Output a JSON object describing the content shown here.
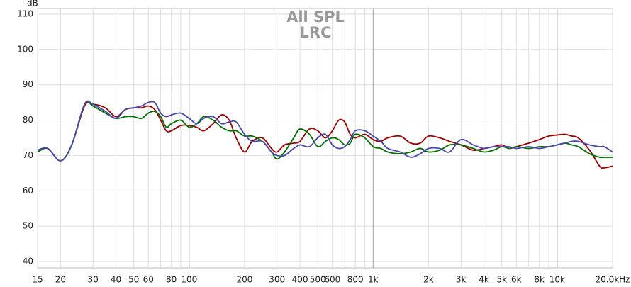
{
  "chart_data": {
    "type": "line",
    "title": "All SPL",
    "subtitle": "LRC",
    "y_label": "dB",
    "x_scale": "log",
    "grid": true,
    "x": [
      15,
      17,
      20,
      23,
      27,
      30,
      35,
      40,
      45,
      50,
      55,
      60,
      65,
      70,
      75,
      80,
      90,
      100,
      110,
      120,
      135,
      150,
      165,
      180,
      200,
      220,
      250,
      280,
      300,
      330,
      370,
      400,
      450,
      500,
      550,
      600,
      650,
      700,
      750,
      800,
      900,
      1000,
      1100,
      1200,
      1400,
      1600,
      1800,
      2000,
      2300,
      2600,
      3000,
      3500,
      4000,
      4500,
      5000,
      5500,
      6000,
      7000,
      8000,
      9000,
      10000,
      11000,
      12000,
      13000,
      15000,
      17000,
      18000,
      20000
    ],
    "series": [
      {
        "color": "#a00000",
        "values": [
          71,
          72,
          68.5,
          73,
          84,
          84.5,
          83.5,
          81,
          83,
          83.5,
          83.5,
          84,
          83,
          80,
          77,
          77,
          78.5,
          78.5,
          78,
          77,
          79,
          81.5,
          80,
          75,
          71,
          74,
          75,
          72,
          71,
          73,
          73.5,
          74,
          77.5,
          77,
          75,
          77,
          80,
          79.5,
          76,
          75,
          76,
          74.5,
          74,
          75,
          75.5,
          73.5,
          73.5,
          75.5,
          75,
          74,
          73,
          71.5,
          72,
          72.5,
          73,
          72,
          72.5,
          73.5,
          74.5,
          75.5,
          75.8,
          76,
          75.5,
          75,
          71.5,
          67,
          66.5,
          67
        ]
      },
      {
        "color": "#007000",
        "values": [
          71,
          72,
          68.5,
          73,
          84.5,
          84,
          82,
          80.5,
          81,
          81,
          80.5,
          82,
          82.5,
          81,
          78,
          79,
          80,
          78,
          79,
          81,
          80,
          78,
          77,
          77,
          75.5,
          75.5,
          74,
          71,
          69,
          71,
          75,
          77.5,
          76,
          72.5,
          74,
          75,
          74.5,
          73,
          73.5,
          76,
          75,
          72.5,
          72,
          71,
          70.5,
          71,
          72,
          71,
          71.5,
          73,
          73,
          72,
          71,
          71.5,
          72.5,
          72,
          72.5,
          72,
          72.5,
          72.5,
          73,
          73.5,
          73,
          72.5,
          70.5,
          69.5,
          69.5,
          69.5
        ]
      },
      {
        "color": "#4848b0",
        "values": [
          71.5,
          72,
          68.5,
          73,
          84.5,
          84.5,
          82.5,
          80.5,
          83,
          83.5,
          84,
          85,
          85,
          82,
          81,
          81.5,
          82,
          80.5,
          79,
          80.5,
          81,
          79,
          79.5,
          79.5,
          76,
          74,
          74,
          71,
          70,
          70,
          72,
          73,
          72.5,
          75,
          76,
          73,
          72,
          72.5,
          74.5,
          77,
          77,
          75.5,
          74,
          72,
          71,
          69.5,
          70.5,
          72,
          72,
          71,
          74.5,
          73,
          72,
          72.5,
          72.5,
          72.5,
          72,
          72.5,
          72,
          72.5,
          73,
          73.5,
          74,
          74,
          73,
          72.5,
          72.5,
          71
        ]
      }
    ],
    "xlim": [
      15,
      20000
    ],
    "ylim": [
      38.2,
      111.6
    ],
    "yticks": [
      40,
      50,
      60,
      70,
      80,
      90,
      100,
      110
    ],
    "xticks": [
      15,
      20,
      30,
      40,
      50,
      60,
      80,
      100,
      200,
      300,
      400,
      500,
      600,
      800,
      {
        "value": 1000,
        "label": "1k"
      },
      {
        "value": 2000,
        "label": "2k"
      },
      {
        "value": 3000,
        "label": "3k"
      },
      {
        "value": 4000,
        "label": "4k"
      },
      {
        "value": 5000,
        "label": "5k"
      },
      {
        "value": 6000,
        "label": "6k"
      },
      {
        "value": 8000,
        "label": "8k"
      },
      {
        "value": 10000,
        "label": "10k"
      },
      {
        "value": 20000,
        "label": "20.0kHz"
      }
    ],
    "x_major_grid": [
      100,
      1000,
      10000
    ],
    "x_minor_grid": [
      70,
      90,
      700,
      900,
      7000,
      9000
    ]
  }
}
